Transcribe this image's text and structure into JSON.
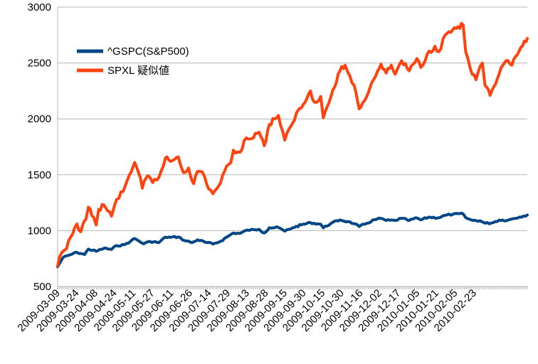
{
  "chart_data": {
    "type": "line",
    "title": "",
    "xlabel": "",
    "ylabel": "",
    "ylim": [
      500,
      3000
    ],
    "yticks": [
      "500",
      "1000",
      "1500",
      "2000",
      "2500",
      "3000"
    ],
    "grid": "horizontal",
    "legend_position": "top-left",
    "x_tick_labels": [
      "2009-03-09",
      "2009-03-24",
      "2009-04-08",
      "2009-04-24",
      "2009-05-11",
      "2009-05-27",
      "2009-06-11",
      "2009-06-26",
      "2009-07-14",
      "2009-07-29",
      "2009-08-13",
      "2009-08-28",
      "2009-09-15",
      "2009-09-30",
      "2009-10-15",
      "2009-10-30",
      "2009-11-16",
      "2009-12-02",
      "2009-12-17",
      "2010-01-05",
      "2010-01-21",
      "2010-02-05",
      "2010-02-23"
    ],
    "series": [
      {
        "name": "^GSPC(S&P500)",
        "color": "#004586",
        "points": [
          [
            "2009-03-09",
            677
          ],
          [
            "2009-03-13",
            757
          ],
          [
            "2009-03-19",
            785
          ],
          [
            "2009-03-24",
            806
          ],
          [
            "2009-03-30",
            786
          ],
          [
            "2009-04-02",
            835
          ],
          [
            "2009-04-08",
            815
          ],
          [
            "2009-04-14",
            842
          ],
          [
            "2009-04-20",
            832
          ],
          [
            "2009-04-24",
            866
          ],
          [
            "2009-04-30",
            873
          ],
          [
            "2009-05-05",
            907
          ],
          [
            "2009-05-08",
            929
          ],
          [
            "2009-05-11",
            909
          ],
          [
            "2009-05-15",
            882
          ],
          [
            "2009-05-20",
            903
          ],
          [
            "2009-05-27",
            893
          ],
          [
            "2009-06-01",
            942
          ],
          [
            "2009-06-05",
            940
          ],
          [
            "2009-06-11",
            944
          ],
          [
            "2009-06-16",
            911
          ],
          [
            "2009-06-22",
            893
          ],
          [
            "2009-06-26",
            918
          ],
          [
            "2009-07-02",
            896
          ],
          [
            "2009-07-08",
            880
          ],
          [
            "2009-07-14",
            905
          ],
          [
            "2009-07-20",
            951
          ],
          [
            "2009-07-24",
            979
          ],
          [
            "2009-07-29",
            975
          ],
          [
            "2009-08-04",
            1005
          ],
          [
            "2009-08-10",
            1007
          ],
          [
            "2009-08-13",
            1012
          ],
          [
            "2009-08-17",
            979
          ],
          [
            "2009-08-21",
            1026
          ],
          [
            "2009-08-28",
            1028
          ],
          [
            "2009-09-02",
            995
          ],
          [
            "2009-09-08",
            1025
          ],
          [
            "2009-09-15",
            1052
          ],
          [
            "2009-09-22",
            1071
          ],
          [
            "2009-09-30",
            1057
          ],
          [
            "2009-10-02",
            1025
          ],
          [
            "2009-10-08",
            1065
          ],
          [
            "2009-10-15",
            1096
          ],
          [
            "2009-10-21",
            1081
          ],
          [
            "2009-10-26",
            1063
          ],
          [
            "2009-10-30",
            1036
          ],
          [
            "2009-11-05",
            1066
          ],
          [
            "2009-11-11",
            1098
          ],
          [
            "2009-11-16",
            1109
          ],
          [
            "2009-11-20",
            1091
          ],
          [
            "2009-11-27",
            1091
          ],
          [
            "2009-12-02",
            1110
          ],
          [
            "2009-12-08",
            1091
          ],
          [
            "2009-12-14",
            1114
          ],
          [
            "2009-12-17",
            1096
          ],
          [
            "2009-12-23",
            1120
          ],
          [
            "2009-12-31",
            1115
          ],
          [
            "2010-01-05",
            1137
          ],
          [
            "2010-01-11",
            1146
          ],
          [
            "2010-01-19",
            1150
          ],
          [
            "2010-01-21",
            1116
          ],
          [
            "2010-01-26",
            1092
          ],
          [
            "2010-02-01",
            1089
          ],
          [
            "2010-02-05",
            1066
          ],
          [
            "2010-02-10",
            1068
          ],
          [
            "2010-02-16",
            1094
          ],
          [
            "2010-02-23",
            1094
          ],
          [
            "2010-02-26",
            1104
          ],
          [
            "2010-03-04",
            1122
          ],
          [
            "2010-03-10",
            1140
          ]
        ]
      },
      {
        "name": "SPXL 疑似値",
        "color": "#ff420e",
        "points": [
          [
            "2009-03-09",
            685
          ],
          [
            "2009-03-12",
            800
          ],
          [
            "2009-03-16",
            840
          ],
          [
            "2009-03-19",
            940
          ],
          [
            "2009-03-24",
            1060
          ],
          [
            "2009-03-27",
            990
          ],
          [
            "2009-03-31",
            1100
          ],
          [
            "2009-04-02",
            1210
          ],
          [
            "2009-04-06",
            1120
          ],
          [
            "2009-04-08",
            1050
          ],
          [
            "2009-04-10",
            1190
          ],
          [
            "2009-04-14",
            1230
          ],
          [
            "2009-04-20",
            1130
          ],
          [
            "2009-04-24",
            1280
          ],
          [
            "2009-04-29",
            1350
          ],
          [
            "2009-05-04",
            1500
          ],
          [
            "2009-05-08",
            1610
          ],
          [
            "2009-05-11",
            1520
          ],
          [
            "2009-05-14",
            1380
          ],
          [
            "2009-05-18",
            1490
          ],
          [
            "2009-05-22",
            1430
          ],
          [
            "2009-05-27",
            1480
          ],
          [
            "2009-06-01",
            1650
          ],
          [
            "2009-06-05",
            1620
          ],
          [
            "2009-06-11",
            1660
          ],
          [
            "2009-06-15",
            1520
          ],
          [
            "2009-06-19",
            1560
          ],
          [
            "2009-06-23",
            1420
          ],
          [
            "2009-06-26",
            1530
          ],
          [
            "2009-06-30",
            1520
          ],
          [
            "2009-07-03",
            1420
          ],
          [
            "2009-07-08",
            1330
          ],
          [
            "2009-07-14",
            1430
          ],
          [
            "2009-07-17",
            1530
          ],
          [
            "2009-07-22",
            1610
          ],
          [
            "2009-07-24",
            1720
          ],
          [
            "2009-07-29",
            1700
          ],
          [
            "2009-08-03",
            1830
          ],
          [
            "2009-08-06",
            1820
          ],
          [
            "2009-08-10",
            1870
          ],
          [
            "2009-08-13",
            1880
          ],
          [
            "2009-08-17",
            1760
          ],
          [
            "2009-08-21",
            1950
          ],
          [
            "2009-08-25",
            2000
          ],
          [
            "2009-08-28",
            2030
          ],
          [
            "2009-09-02",
            1810
          ],
          [
            "2009-09-08",
            1960
          ],
          [
            "2009-09-11",
            2050
          ],
          [
            "2009-09-15",
            2100
          ],
          [
            "2009-09-22",
            2250
          ],
          [
            "2009-09-25",
            2150
          ],
          [
            "2009-09-30",
            2200
          ],
          [
            "2009-10-02",
            2010
          ],
          [
            "2009-10-08",
            2200
          ],
          [
            "2009-10-15",
            2430
          ],
          [
            "2009-10-19",
            2480
          ],
          [
            "2009-10-21",
            2420
          ],
          [
            "2009-10-26",
            2300
          ],
          [
            "2009-10-30",
            2090
          ],
          [
            "2009-11-03",
            2160
          ],
          [
            "2009-11-09",
            2330
          ],
          [
            "2009-11-16",
            2490
          ],
          [
            "2009-11-20",
            2410
          ],
          [
            "2009-11-24",
            2480
          ],
          [
            "2009-11-27",
            2400
          ],
          [
            "2009-12-02",
            2520
          ],
          [
            "2009-12-08",
            2430
          ],
          [
            "2009-12-14",
            2540
          ],
          [
            "2009-12-17",
            2460
          ],
          [
            "2009-12-22",
            2580
          ],
          [
            "2009-12-28",
            2650
          ],
          [
            "2009-12-31",
            2600
          ],
          [
            "2010-01-05",
            2750
          ],
          [
            "2010-01-11",
            2800
          ],
          [
            "2010-01-19",
            2840
          ],
          [
            "2010-01-21",
            2600
          ],
          [
            "2010-01-26",
            2400
          ],
          [
            "2010-01-29",
            2350
          ],
          [
            "2010-02-03",
            2500
          ],
          [
            "2010-02-05",
            2300
          ],
          [
            "2010-02-09",
            2210
          ],
          [
            "2010-02-12",
            2290
          ],
          [
            "2010-02-16",
            2400
          ],
          [
            "2010-02-19",
            2480
          ],
          [
            "2010-02-23",
            2520
          ],
          [
            "2010-02-26",
            2480
          ],
          [
            "2010-03-02",
            2570
          ],
          [
            "2010-03-05",
            2640
          ],
          [
            "2010-03-09",
            2690
          ],
          [
            "2010-03-10",
            2720
          ]
        ]
      }
    ]
  }
}
